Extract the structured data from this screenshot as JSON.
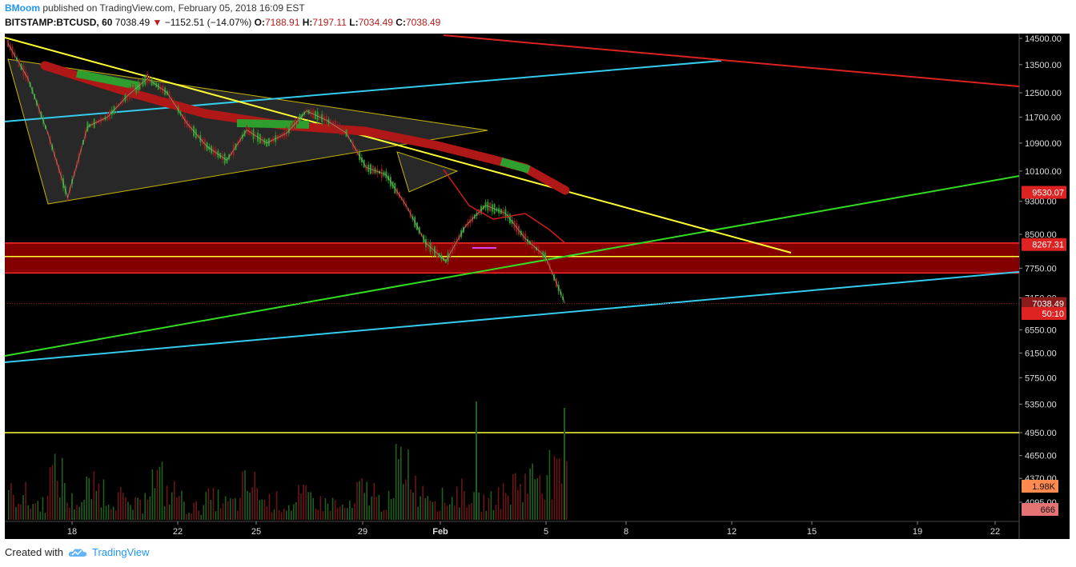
{
  "header": {
    "author": "BMoom",
    "published_text": "published on TradingView.com, February 05, 2018 16:09 EST",
    "symbol": "BITSTAMP:BTCUSD, 60",
    "last": "7038.49",
    "change": "−1152.51 (−14.07%)",
    "o_label": "O:",
    "o_value": "7188.91",
    "h_label": "H:",
    "h_value": "7197.11",
    "l_label": "L:",
    "l_value": "7034.49",
    "c_label": "C:",
    "c_value": "7038.49"
  },
  "footer": {
    "created_with": "Created with",
    "brand": "TradingView"
  },
  "colors": {
    "background": "#000000",
    "up": "#1e7b1e",
    "down": "#8b1a1a",
    "resistance_zone": "#8b0000",
    "yellow": "#ffff33",
    "cyan": "#33ccee",
    "green": "#33dd22",
    "red": "#dd2222"
  },
  "chart_data": {
    "type": "candlestick",
    "interval": "60",
    "y_axis": {
      "ticks": [
        "14500.00",
        "13500.00",
        "12500.00",
        "11700.00",
        "10900.00",
        "10100.00",
        "9300.00",
        "8500.00",
        "7750.00",
        "7150.00",
        "6550.00",
        "6150.00",
        "5750.00",
        "5350.00",
        "4950.00",
        "4650.00",
        "4370.00",
        "4095.00"
      ],
      "scale": "log"
    },
    "x_axis": {
      "ticks": [
        "18",
        "22",
        "25",
        "29",
        "Feb",
        "5",
        "8",
        "12",
        "15",
        "19",
        "22"
      ]
    },
    "price_labels": [
      {
        "text": "9530.07",
        "value": 9530.07,
        "color": "#dd2222"
      },
      {
        "text": "8267.31",
        "value": 8267.31,
        "color": "#dd2222"
      },
      {
        "text": "7038.49",
        "value": 7038.49,
        "color": "#8b1a1a"
      },
      {
        "text": "50:10",
        "value": 6850,
        "color": "#dd2222"
      }
    ],
    "volume_labels": [
      {
        "text": "1.98K",
        "color": "#ff8a50"
      },
      {
        "text": "666",
        "color": "#e57373"
      }
    ],
    "horizontal_levels": [
      {
        "name": "resistance-zone-top",
        "value": 8300
      },
      {
        "name": "resistance-zone-mid",
        "value": 8000
      },
      {
        "name": "resistance-zone-bottom",
        "value": 7650
      },
      {
        "name": "yellow-support",
        "value": 4950
      }
    ],
    "price_path": [
      [
        "Jan 15",
        14300
      ],
      [
        "Jan 16",
        13000
      ],
      [
        "Jan 17",
        11200
      ],
      [
        "Jan 17",
        9400
      ],
      [
        "Jan 18",
        11400
      ],
      [
        "Jan 19",
        11700
      ],
      [
        "Jan 20",
        12400
      ],
      [
        "Jan 21",
        13000
      ],
      [
        "Jan 21",
        12500
      ],
      [
        "Jan 22",
        11500
      ],
      [
        "Jan 23",
        10800
      ],
      [
        "Jan 24",
        10400
      ],
      [
        "Jan 25",
        11300
      ],
      [
        "Jan 26",
        10900
      ],
      [
        "Jan 27",
        11200
      ],
      [
        "Jan 28",
        11900
      ],
      [
        "Jan 29",
        11600
      ],
      [
        "Jan 30",
        11200
      ],
      [
        "Jan 31",
        10200
      ],
      [
        "Feb 1",
        10000
      ],
      [
        "Feb 1",
        9200
      ],
      [
        "Feb 2",
        8300
      ],
      [
        "Feb 2",
        7900
      ],
      [
        "Feb 3",
        8700
      ],
      [
        "Feb 3",
        9200
      ],
      [
        "Feb 4",
        9000
      ],
      [
        "Feb 4",
        8400
      ],
      [
        "Feb 5",
        8000
      ],
      [
        "Feb 5",
        7038
      ]
    ],
    "volume_series": [
      1.2,
      0.8,
      2.1,
      0.9,
      1.5,
      1.1,
      0.7,
      1.9,
      1.3,
      0.6,
      1.0,
      0.8,
      1.6,
      0.9,
      0.7,
      1.1,
      0.8,
      0.6,
      1.4,
      0.9,
      2.8,
      1.5,
      1.0,
      1.3,
      0.9,
      1.2,
      1.8,
      2.4,
      1.98
    ]
  }
}
